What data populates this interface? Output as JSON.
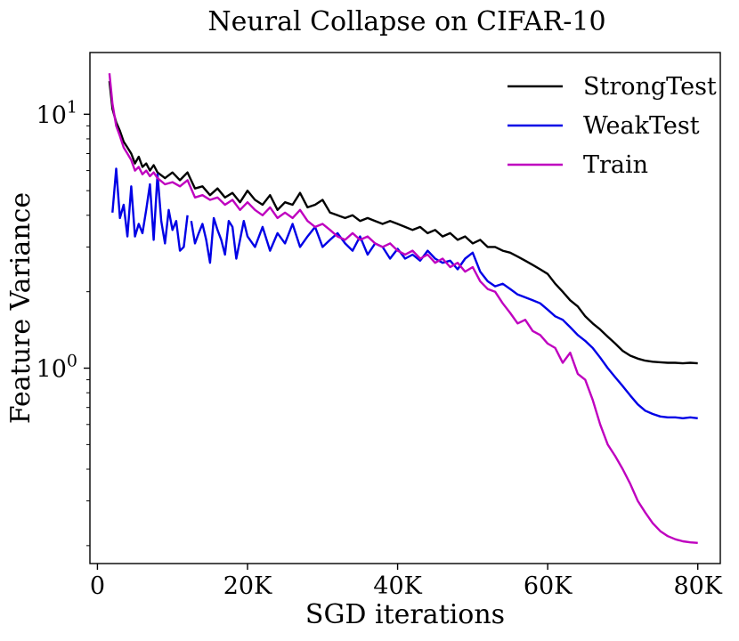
{
  "chart_data": {
    "type": "line",
    "title": "Neural Collapse on CIFAR-10",
    "xlabel": "SGD iterations",
    "ylabel": "Feature Variance",
    "yscale": "log",
    "xlim": [
      -1000,
      83000
    ],
    "ylim": [
      0.17,
      17.5
    ],
    "x_ticks": [
      {
        "value": 0,
        "label": "0"
      },
      {
        "value": 20000,
        "label": "20K"
      },
      {
        "value": 40000,
        "label": "40K"
      },
      {
        "value": 60000,
        "label": "60K"
      },
      {
        "value": 80000,
        "label": "80K"
      }
    ],
    "y_ticks": [
      {
        "value": 1,
        "base": "10",
        "exp": "0"
      },
      {
        "value": 10,
        "base": "10",
        "exp": "1"
      }
    ],
    "legend_position": "top-right",
    "series": [
      {
        "name": "StrongTest",
        "color": "#000000",
        "x": [
          1600,
          2000,
          2500,
          3000,
          3500,
          4000,
          4500,
          5000,
          5500,
          6000,
          6500,
          7000,
          7500,
          8000,
          9000,
          10000,
          11000,
          12000,
          13000,
          14000,
          15000,
          16000,
          17000,
          18000,
          19000,
          20000,
          21000,
          22000,
          23000,
          24000,
          25000,
          26000,
          27000,
          28000,
          29000,
          30000,
          31000,
          32000,
          33000,
          34000,
          35000,
          36000,
          37000,
          38000,
          39000,
          40000,
          41000,
          42000,
          43000,
          44000,
          45000,
          46000,
          47000,
          48000,
          49000,
          50000,
          51000,
          52000,
          53000,
          54000,
          55000,
          56000,
          57000,
          58000,
          59000,
          60000,
          61000,
          62000,
          63000,
          64000,
          65000,
          66000,
          67000,
          68000,
          69000,
          70000,
          71000,
          72000,
          73000,
          74000,
          75000,
          76000,
          77000,
          78000,
          79000,
          80000
        ],
        "y": [
          13.5,
          10.5,
          9.3,
          8.6,
          7.8,
          7.4,
          7.0,
          6.4,
          6.8,
          6.2,
          6.4,
          6.0,
          6.3,
          5.9,
          5.6,
          5.9,
          5.5,
          5.9,
          5.1,
          5.2,
          4.8,
          5.1,
          4.7,
          4.9,
          4.5,
          5.0,
          4.6,
          4.4,
          4.8,
          4.2,
          4.5,
          4.4,
          4.9,
          4.3,
          4.4,
          4.6,
          4.1,
          4.0,
          3.9,
          4.0,
          3.8,
          3.9,
          3.8,
          3.7,
          3.8,
          3.7,
          3.6,
          3.5,
          3.6,
          3.4,
          3.5,
          3.3,
          3.4,
          3.2,
          3.3,
          3.1,
          3.2,
          3.0,
          3.0,
          2.9,
          2.85,
          2.75,
          2.65,
          2.55,
          2.45,
          2.35,
          2.15,
          2.0,
          1.85,
          1.75,
          1.6,
          1.5,
          1.42,
          1.33,
          1.25,
          1.17,
          1.12,
          1.09,
          1.07,
          1.06,
          1.055,
          1.05,
          1.05,
          1.045,
          1.05,
          1.045
        ]
      },
      {
        "name": "WeakTest",
        "color": "#0000e6",
        "x": [
          2000,
          2500,
          3000,
          3500,
          4000,
          4500,
          5000,
          5500,
          6000,
          6500,
          7000,
          7500,
          8000,
          8500,
          9000,
          9500,
          10000,
          10500,
          11000,
          11500,
          12000,
          null,
          12500,
          13000,
          13500,
          14000,
          14500,
          15000,
          15500,
          16000,
          16500,
          17000,
          17500,
          18000,
          18500,
          19000,
          19500,
          20000,
          21000,
          22000,
          23000,
          24000,
          25000,
          26000,
          27000,
          28000,
          29000,
          30000,
          31000,
          32000,
          33000,
          34000,
          35000,
          36000,
          37000,
          38000,
          39000,
          40000,
          41000,
          42000,
          43000,
          44000,
          45000,
          46000,
          47000,
          48000,
          49000,
          50000,
          51000,
          52000,
          53000,
          54000,
          55000,
          56000,
          57000,
          58000,
          59000,
          60000,
          61000,
          62000,
          63000,
          64000,
          65000,
          66000,
          67000,
          68000,
          69000,
          70000,
          71000,
          72000,
          73000,
          74000,
          75000,
          76000,
          77000,
          78000,
          79000,
          80000
        ],
        "y": [
          4.1,
          6.1,
          3.9,
          4.4,
          3.3,
          5.2,
          3.3,
          3.7,
          3.4,
          4.2,
          5.3,
          3.2,
          5.8,
          3.8,
          3.1,
          4.2,
          3.5,
          3.8,
          2.9,
          3.0,
          4.0,
          null,
          3.8,
          3.1,
          3.4,
          3.7,
          3.2,
          2.6,
          3.9,
          3.5,
          3.2,
          2.8,
          3.8,
          3.6,
          2.7,
          3.2,
          3.8,
          3.3,
          3.0,
          3.6,
          2.9,
          3.4,
          3.1,
          3.7,
          3.0,
          3.3,
          3.6,
          3.0,
          3.2,
          3.4,
          3.1,
          2.9,
          3.3,
          2.8,
          3.1,
          3.0,
          2.7,
          2.95,
          2.7,
          2.8,
          2.65,
          2.9,
          2.7,
          2.6,
          2.65,
          2.45,
          2.7,
          2.85,
          2.4,
          2.2,
          2.1,
          2.15,
          2.05,
          1.95,
          1.9,
          1.85,
          1.8,
          1.7,
          1.6,
          1.55,
          1.45,
          1.35,
          1.28,
          1.2,
          1.1,
          1.0,
          0.92,
          0.85,
          0.78,
          0.72,
          0.68,
          0.66,
          0.645,
          0.64,
          0.64,
          0.635,
          0.64,
          0.635
        ]
      },
      {
        "name": "Train",
        "color": "#bf00bf",
        "x": [
          1600,
          2000,
          2500,
          3000,
          3500,
          4000,
          4500,
          5000,
          5500,
          6000,
          6500,
          7000,
          7500,
          8000,
          9000,
          10000,
          11000,
          12000,
          13000,
          14000,
          15000,
          16000,
          17000,
          18000,
          19000,
          20000,
          21000,
          22000,
          23000,
          24000,
          25000,
          26000,
          27000,
          28000,
          29000,
          30000,
          31000,
          32000,
          33000,
          34000,
          35000,
          36000,
          37000,
          38000,
          39000,
          40000,
          41000,
          42000,
          43000,
          44000,
          45000,
          46000,
          47000,
          48000,
          49000,
          50000,
          51000,
          52000,
          53000,
          54000,
          55000,
          56000,
          57000,
          58000,
          59000,
          60000,
          61000,
          62000,
          63000,
          64000,
          65000,
          66000,
          67000,
          68000,
          69000,
          70000,
          71000,
          72000,
          73000,
          74000,
          75000,
          76000,
          77000,
          78000,
          79000,
          80000
        ],
        "y": [
          14.5,
          11.0,
          9.0,
          8.2,
          7.4,
          7.0,
          6.6,
          6.0,
          6.2,
          5.8,
          6.0,
          5.7,
          5.9,
          5.6,
          5.3,
          5.4,
          5.2,
          5.5,
          4.7,
          4.8,
          4.6,
          4.7,
          4.4,
          4.6,
          4.2,
          4.5,
          4.2,
          4.0,
          4.3,
          3.9,
          4.1,
          3.9,
          4.2,
          3.8,
          3.6,
          3.7,
          3.5,
          3.3,
          3.2,
          3.4,
          3.2,
          3.3,
          3.1,
          3.0,
          3.1,
          2.9,
          2.8,
          2.9,
          2.7,
          2.8,
          2.6,
          2.7,
          2.5,
          2.6,
          2.4,
          2.5,
          2.2,
          2.05,
          2.0,
          1.8,
          1.65,
          1.5,
          1.55,
          1.4,
          1.35,
          1.25,
          1.2,
          1.05,
          1.15,
          0.95,
          0.9,
          0.75,
          0.6,
          0.5,
          0.45,
          0.4,
          0.35,
          0.3,
          0.27,
          0.245,
          0.228,
          0.218,
          0.212,
          0.208,
          0.206,
          0.205
        ]
      }
    ]
  }
}
